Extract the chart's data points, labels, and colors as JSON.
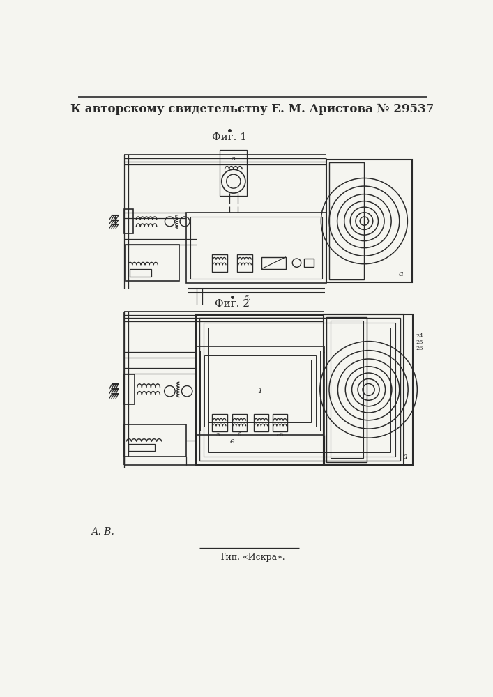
{
  "title": "К авторскому свидетельству Е. М. Аристова № 29537",
  "fig1_label": "Фиг. 1",
  "fig2_label": "Фиг. 2",
  "footer_left": "А. В.",
  "footer_center": "Тип. «Искра».",
  "bg_color": "#f5f5f0",
  "line_color": "#2a2a2a",
  "title_fontsize": 12,
  "label_fontsize": 11
}
